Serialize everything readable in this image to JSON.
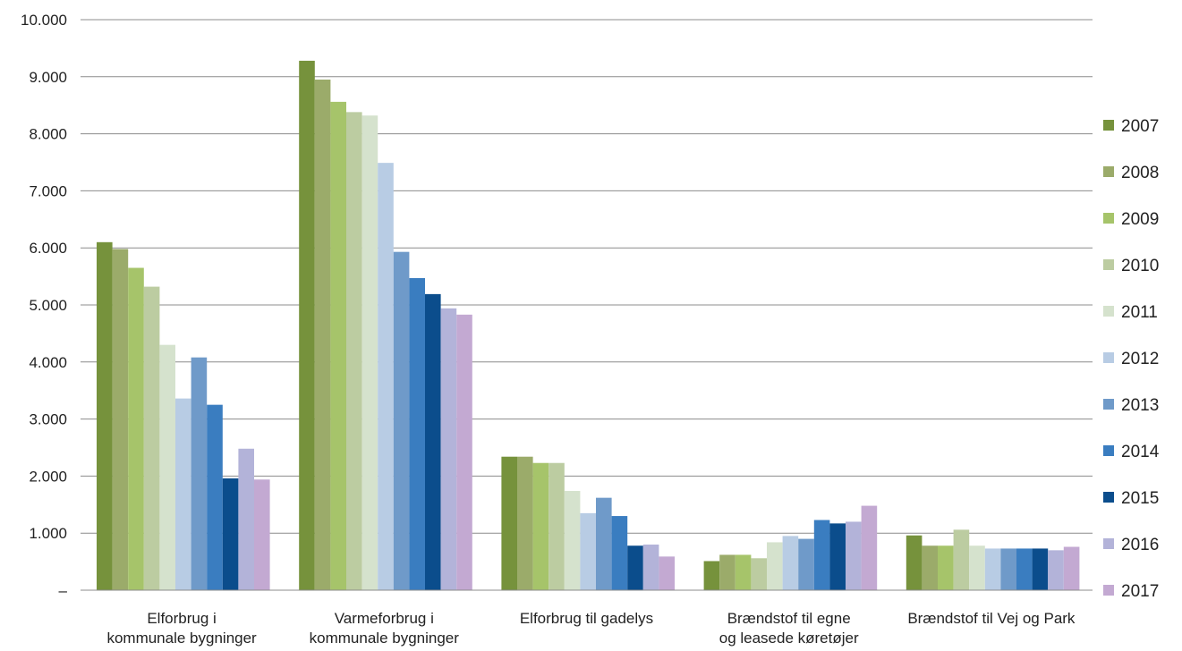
{
  "chart_data": {
    "type": "bar",
    "title": "",
    "xlabel": "",
    "ylabel": "",
    "ylim": [
      0,
      10000
    ],
    "grid": true,
    "legend": "right",
    "yticks": [
      0,
      1000,
      2000,
      3000,
      4000,
      5000,
      6000,
      7000,
      8000,
      9000,
      10000
    ],
    "ytick_labels": [
      "–",
      "1.000",
      "2.000",
      "3.000",
      "4.000",
      "5.000",
      "6.000",
      "7.000",
      "8.000",
      "9.000",
      "10.000"
    ],
    "categories": [
      [
        "Elforbrug i",
        "kommunale bygninger"
      ],
      [
        "Varmeforbrug i",
        "kommunale bygninger"
      ],
      [
        "Elforbrug til gadelys"
      ],
      [
        "Brændstof til egne",
        "og leasede køretøjer"
      ],
      [
        "Brændstof til Vej og Park"
      ]
    ],
    "series": [
      {
        "name": "2007",
        "color": "#76923c",
        "values": [
          6100,
          9280,
          2340,
          510,
          960
        ]
      },
      {
        "name": "2008",
        "color": "#9bab6a",
        "values": [
          5980,
          8950,
          2340,
          620,
          780
        ]
      },
      {
        "name": "2009",
        "color": "#a6c46a",
        "values": [
          5650,
          8560,
          2230,
          620,
          780
        ]
      },
      {
        "name": "2010",
        "color": "#bccca1",
        "values": [
          5320,
          8380,
          2230,
          560,
          1060
        ]
      },
      {
        "name": "2011",
        "color": "#d5e2cd",
        "values": [
          4300,
          8320,
          1740,
          840,
          780
        ]
      },
      {
        "name": "2012",
        "color": "#b8cce4",
        "values": [
          3360,
          7490,
          1350,
          950,
          730
        ]
      },
      {
        "name": "2013",
        "color": "#6f9ac9",
        "values": [
          4080,
          5930,
          1620,
          900,
          730
        ]
      },
      {
        "name": "2014",
        "color": "#3a7dc0",
        "values": [
          3250,
          5470,
          1300,
          1230,
          730
        ]
      },
      {
        "name": "2015",
        "color": "#0b4d8c",
        "values": [
          1960,
          5190,
          780,
          1170,
          730
        ]
      },
      {
        "name": "2016",
        "color": "#b3b3d9",
        "values": [
          2480,
          4940,
          800,
          1200,
          700
        ]
      },
      {
        "name": "2017",
        "color": "#c3a9d2",
        "values": [
          1940,
          4830,
          590,
          1480,
          760
        ]
      }
    ]
  }
}
